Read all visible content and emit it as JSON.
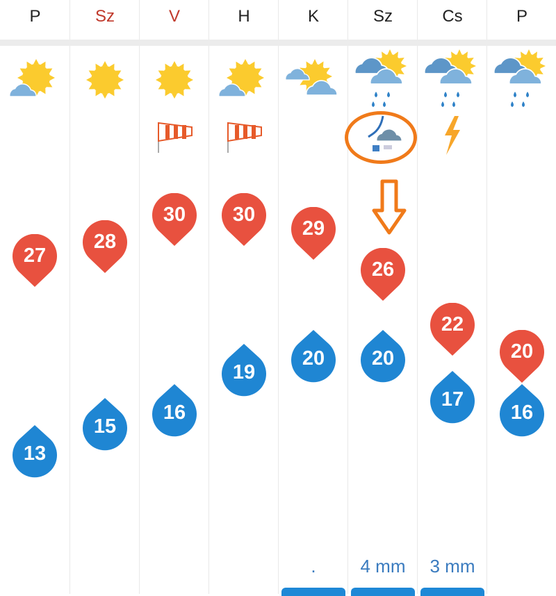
{
  "days": [
    {
      "label": "P",
      "weekend": false,
      "icon": "sun-behind-small-cloud",
      "extra": "",
      "max": 27,
      "min": 13,
      "precip": ""
    },
    {
      "label": "Sz",
      "weekend": true,
      "icon": "sun",
      "extra": "",
      "max": 28,
      "min": 15,
      "precip": ""
    },
    {
      "label": "V",
      "weekend": true,
      "icon": "sun",
      "extra": "windsock-icon",
      "max": 30,
      "min": 16,
      "precip": ""
    },
    {
      "label": "H",
      "weekend": false,
      "icon": "sun-behind-small-cloud",
      "extra": "windsock-icon",
      "max": 30,
      "min": 19,
      "precip": ""
    },
    {
      "label": "K",
      "weekend": false,
      "icon": "sun-with-clouds",
      "extra": "",
      "max": 29,
      "min": 20,
      "precip": ".",
      "bar": true
    },
    {
      "label": "Sz",
      "weekend": false,
      "icon": "rain-clouds-sun",
      "extra": "cold-front-icon",
      "max": 26,
      "min": 20,
      "precip": "4 mm",
      "bar": true
    },
    {
      "label": "Cs",
      "weekend": false,
      "icon": "rain-clouds-sun",
      "extra": "lightning-icon",
      "max": 22,
      "min": 17,
      "precip": "3 mm",
      "bar": true
    },
    {
      "label": "P",
      "weekend": false,
      "icon": "rain-clouds-sun",
      "extra": "",
      "max": 20,
      "min": 16,
      "precip": ""
    }
  ],
  "colors": {
    "max": "#e8513f",
    "min": "#1f86d3",
    "weekend": "#c0392b",
    "sun": "#fbcb2e",
    "highlight": "#f07a1a"
  }
}
